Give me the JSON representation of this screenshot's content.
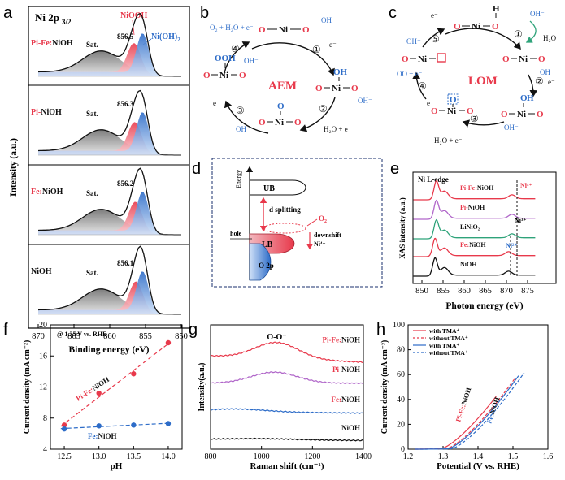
{
  "panel_labels": {
    "a": "a",
    "b": "b",
    "c": "c",
    "d": "d",
    "e": "e",
    "f": "f",
    "g": "g",
    "h": "h"
  },
  "colors": {
    "red": "#e8394b",
    "blue": "#2d6cc8",
    "grey": "#8a8a8a",
    "purple": "#b066c9",
    "green": "#2fa37a",
    "black": "#111111"
  },
  "panel_a": {
    "title_main": "Ni 2p",
    "title_sub": "3/2",
    "ylabel": "Intensity (a.u.)",
    "xlabel": "Binding energy (eV)",
    "xticks": [
      "870",
      "865",
      "860",
      "855",
      "850"
    ],
    "legend_niooh": "NiOOH",
    "legend_nioh2": "Ni(OH)",
    "legend_nioh2_sub": "2",
    "sat": "Sat.",
    "samples": [
      {
        "prefix": "Pi-Fe:",
        "base": "NiOH",
        "peak": "856.5"
      },
      {
        "prefix": "Pi-",
        "base": "NiOH",
        "peak": "856.3"
      },
      {
        "prefix": "Fe:",
        "base": "NiOH",
        "peak": "856.2"
      },
      {
        "prefix": "",
        "base": "NiOH",
        "peak": "856.1"
      }
    ]
  },
  "panel_b": {
    "center": "AEM",
    "steps": [
      "①",
      "②",
      "③",
      "④"
    ],
    "oh": "OH",
    "ooh": "OOH",
    "o": "O",
    "ni": "Ni",
    "ohm": "OH⁻",
    "em": "e⁻",
    "o2_product": "O₂ + H₂O + e⁻",
    "h2o_product": "H₂O + e⁻"
  },
  "panel_c": {
    "center": "LOM",
    "steps": [
      "①",
      "②",
      "③",
      "④",
      "⑤"
    ],
    "h": "H",
    "h2o": "H₂O",
    "h2o_e": "H₂O + e⁻",
    "oo_e": "OO + e⁻"
  },
  "panel_d": {
    "energy": "Energy",
    "ub": "UB",
    "lb": "LB",
    "o2p": "O 2p",
    "d_split": "d splitting",
    "o2": "O",
    "o2_sub": "2",
    "hole": "hole",
    "downshift": "downshift",
    "ni4": "Ni⁴⁺"
  },
  "panel_e": {
    "title": "Ni L-edge",
    "ylabel": "XAS intensity (a.u.)",
    "xlabel": "Photon energy (eV)",
    "xticks": [
      "850",
      "855",
      "860",
      "865",
      "870",
      "875"
    ],
    "ni4": "Ni⁴⁺",
    "ni3": "Ni³⁺",
    "ni2": "Ni²⁺",
    "samples": [
      {
        "prefix": "Pi-Fe:",
        "base": "NiOH"
      },
      {
        "prefix": "Pi-",
        "base": "NiOH"
      },
      {
        "prefix": "",
        "base": "LiNiO₂"
      },
      {
        "prefix": "Fe:",
        "base": "NiOH"
      },
      {
        "prefix": "",
        "base": "NiOH"
      }
    ]
  },
  "panel_f": {
    "annotation": "@ 1.35 V vs. RHE",
    "series_red_prefix": "Pi-Fe:",
    "series_red_base": "NiOH",
    "series_blue_prefix": "Fe:",
    "series_blue_base": "NiOH"
  },
  "panel_g": {
    "peak": "O-O⁻",
    "samples": [
      {
        "prefix": "Pi-Fe:",
        "base": "NiOH"
      },
      {
        "prefix": "Pi-",
        "base": "NiOH"
      },
      {
        "prefix": "Fe:",
        "base": "NiOH"
      },
      {
        "prefix": "",
        "base": "NiOH"
      }
    ]
  },
  "panel_h": {
    "legend": [
      {
        "text": "with  TMA⁺"
      },
      {
        "text": "without  TMA⁺"
      },
      {
        "text": "with  TMA⁺"
      },
      {
        "text": "without  TMA⁺"
      }
    ],
    "red_prefix": "Pi-Fe:",
    "red_base": "NiOH",
    "blue_prefix": "Fe:",
    "blue_base": "NiOH"
  },
  "chart_data": [
    {
      "panel": "f",
      "type": "scatter",
      "title": "",
      "xlabel": "pH",
      "ylabel": "Current density (mA cm⁻²)",
      "xlim": [
        12.3,
        14.2
      ],
      "ylim": [
        4,
        20
      ],
      "xticks": [
        12.5,
        13.0,
        13.5,
        14.0
      ],
      "yticks": [
        4,
        8,
        12,
        16,
        20
      ],
      "series": [
        {
          "name": "Pi-Fe:NiOH",
          "color": "#e8394b",
          "x": [
            12.5,
            13.0,
            13.5,
            14.0
          ],
          "y": [
            7.1,
            11.2,
            13.7,
            17.7
          ]
        },
        {
          "name": "Fe:NiOH",
          "color": "#2d6cc8",
          "x": [
            12.5,
            13.0,
            13.5,
            14.0
          ],
          "y": [
            6.6,
            7.0,
            7.1,
            7.3
          ]
        }
      ]
    },
    {
      "panel": "g",
      "type": "line",
      "title": "",
      "xlabel": "Raman shift (cm⁻¹)",
      "ylabel": "Intensity(a.u.)",
      "xlim": [
        800,
        1400
      ],
      "ylim": [
        0,
        10
      ],
      "xticks": [
        800,
        1000,
        1200,
        1400
      ],
      "series": [
        {
          "name": "Pi-Fe:NiOH",
          "color": "#e8394b",
          "offset": 7.5,
          "peak": 1060,
          "amp": 1.3,
          "width": 85
        },
        {
          "name": "Pi-NiOH",
          "color": "#b066c9",
          "offset": 5.2,
          "peak": 1050,
          "amp": 0.9,
          "width": 90
        },
        {
          "name": "Fe:NiOH",
          "color": "#2d6cc8",
          "offset": 3.0,
          "peak": 900,
          "amp": 0.25,
          "width": 120
        },
        {
          "name": "NiOH",
          "color": "#111111",
          "offset": 0.8,
          "peak": 1000,
          "amp": 0.08,
          "width": 120
        }
      ]
    },
    {
      "panel": "h",
      "type": "line",
      "title": "",
      "xlabel": "Potential (V vs. RHE)",
      "ylabel": "Current density (mA cm⁻²)",
      "xlim": [
        1.2,
        1.6
      ],
      "ylim": [
        0,
        100
      ],
      "xticks": [
        1.2,
        1.3,
        1.4,
        1.5,
        1.6
      ],
      "yticks": [
        0,
        20,
        40,
        60,
        80,
        100
      ],
      "series": [
        {
          "name": "Pi-Fe:NiOH with TMA⁺",
          "color": "#e8394b",
          "dash": false,
          "onset": 1.295,
          "end_x": 1.455
        },
        {
          "name": "Pi-Fe:NiOH without TMA⁺",
          "color": "#e8394b",
          "dash": true,
          "onset": 1.31,
          "end_x": 1.505
        },
        {
          "name": "Fe:NiOH with TMA⁺",
          "color": "#2d6cc8",
          "dash": false,
          "onset": 1.315,
          "end_x": 1.52
        },
        {
          "name": "Fe:NiOH without TMA⁺",
          "color": "#2d6cc8",
          "dash": true,
          "onset": 1.325,
          "end_x": 1.535
        }
      ]
    }
  ]
}
